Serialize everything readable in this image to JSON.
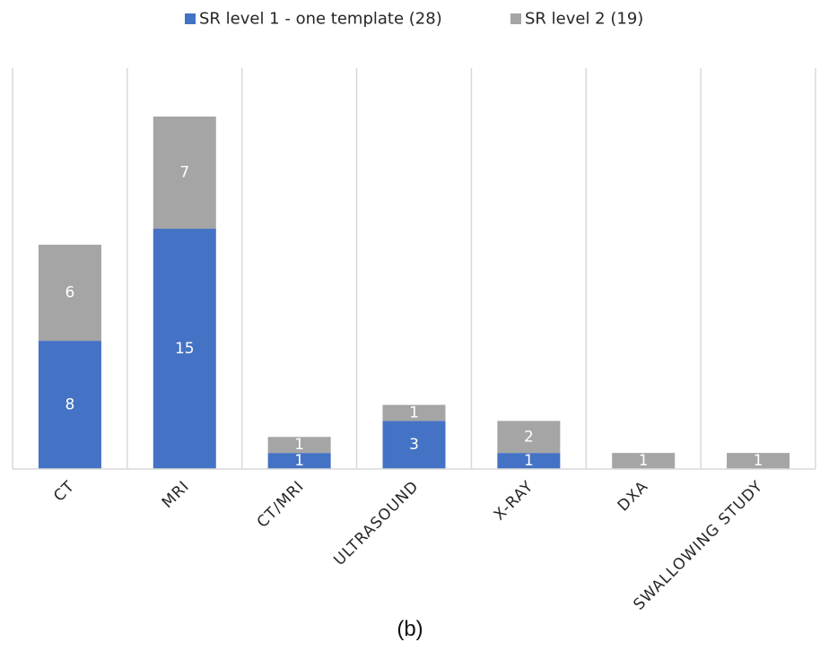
{
  "chart_data": {
    "type": "bar",
    "stacked": true,
    "categories": [
      "CT",
      "MRI",
      "CT/MRI",
      "ULTRASOUND",
      "X-RAY",
      "DXA",
      "SWALLOWING STUDY"
    ],
    "series": [
      {
        "name": "SR level 1 - one template (28)",
        "values": [
          8,
          15,
          1,
          3,
          1,
          0,
          0
        ],
        "color": "#4472C4"
      },
      {
        "name": "SR level 2 (19)",
        "values": [
          6,
          7,
          1,
          1,
          2,
          1,
          1
        ],
        "color": "#A5A5A5"
      }
    ],
    "ylim": [
      0,
      24
    ],
    "legend_position": "top",
    "gridlines": "vertical",
    "data_labels": true
  },
  "caption": "(b)"
}
